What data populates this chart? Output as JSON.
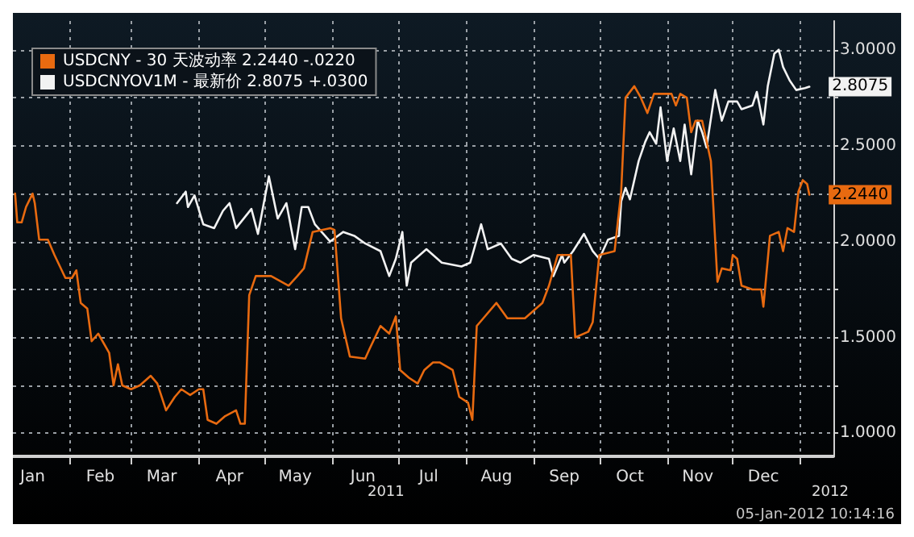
{
  "chart_data": {
    "type": "line",
    "x": [
      "2011-01-07",
      "2011-01-08",
      "2011-01-10",
      "2011-01-12",
      "2011-01-15",
      "2011-01-16",
      "2011-01-18",
      "2011-01-22",
      "2011-01-25",
      "2011-01-30",
      "2011-02-02",
      "2011-02-04",
      "2011-02-06",
      "2011-02-09",
      "2011-02-11",
      "2011-02-14",
      "2011-02-19",
      "2011-02-21",
      "2011-02-23",
      "2011-02-25",
      "2011-03-01",
      "2011-03-05",
      "2011-03-10",
      "2011-03-13",
      "2011-03-17",
      "2011-03-21",
      "2011-03-24",
      "2011-03-28",
      "2011-04-01",
      "2011-04-03",
      "2011-04-05",
      "2011-04-09",
      "2011-04-13",
      "2011-04-18",
      "2011-04-20",
      "2011-04-22",
      "2011-04-24",
      "2011-04-27",
      "2011-05-04",
      "2011-05-12",
      "2011-05-16",
      "2011-05-19",
      "2011-05-23",
      "2011-05-31",
      "2011-06-02",
      "2011-06-05",
      "2011-06-09",
      "2011-06-16",
      "2011-06-18",
      "2011-06-23",
      "2011-06-27",
      "2011-06-30",
      "2011-07-02",
      "2011-07-06",
      "2011-07-10",
      "2011-07-13",
      "2011-07-17",
      "2011-07-20",
      "2011-07-26",
      "2011-07-29",
      "2011-08-02",
      "2011-08-04",
      "2011-08-06",
      "2011-08-09",
      "2011-08-15",
      "2011-08-20",
      "2011-08-28",
      "2011-09-05",
      "2011-09-08",
      "2011-09-12",
      "2011-09-18",
      "2011-09-20",
      "2011-09-26",
      "2011-09-28",
      "2011-10-01",
      "2011-10-08",
      "2011-10-11",
      "2011-10-13",
      "2011-10-17",
      "2011-10-20",
      "2011-10-23",
      "2011-10-26",
      "2011-11-03",
      "2011-11-05",
      "2011-11-07",
      "2011-11-10",
      "2011-11-12",
      "2011-11-14",
      "2011-11-17",
      "2011-11-21",
      "2011-11-24",
      "2011-11-26",
      "2011-11-30",
      "2011-12-01",
      "2011-12-03",
      "2011-12-05",
      "2011-12-10",
      "2011-12-14",
      "2011-12-15",
      "2011-12-18",
      "2011-12-22",
      "2011-12-24",
      "2011-12-26",
      "2011-12-29",
      "2011-12-31",
      "2012-01-02",
      "2012-01-04",
      "2012-01-05"
    ],
    "series": [
      {
        "name": "USDCNY - 30 天波动率 2.2440 -.0220",
        "color": "#e86a10",
        "values": [
          2.25,
          2.1,
          2.1,
          2.18,
          2.25,
          2.2,
          2.01,
          2.01,
          1.93,
          1.81,
          1.81,
          1.85,
          1.68,
          1.65,
          1.48,
          1.52,
          1.42,
          1.25,
          1.36,
          1.25,
          1.23,
          1.25,
          1.3,
          1.26,
          1.12,
          1.19,
          1.23,
          1.2,
          1.23,
          1.23,
          1.07,
          1.05,
          1.09,
          1.12,
          1.05,
          1.05,
          1.72,
          1.82,
          1.82,
          1.77,
          1.82,
          1.86,
          2.05,
          2.07,
          2.06,
          1.6,
          1.4,
          1.39,
          1.44,
          1.56,
          1.52,
          1.61,
          1.33,
          1.29,
          1.26,
          1.33,
          1.37,
          1.37,
          1.33,
          1.19,
          1.16,
          1.07,
          1.56,
          1.6,
          1.68,
          1.6,
          1.6,
          1.68,
          1.77,
          1.93,
          1.93,
          1.5,
          1.53,
          1.58,
          1.93,
          1.95,
          2.26,
          2.75,
          2.81,
          2.75,
          2.67,
          2.77,
          2.77,
          2.71,
          2.77,
          2.75,
          2.57,
          2.63,
          2.63,
          2.42,
          1.79,
          1.86,
          1.85,
          1.93,
          1.91,
          1.77,
          1.75,
          1.75,
          1.66,
          2.03,
          2.05,
          1.95,
          2.07,
          2.05,
          2.26,
          2.32,
          2.3,
          2.244
        ],
        "value_labels": [
          null,
          null,
          null,
          null,
          null,
          null,
          null,
          null,
          null,
          null,
          null,
          null,
          null,
          null,
          null,
          null,
          null,
          null,
          null,
          null,
          null,
          null,
          null,
          null,
          null,
          null,
          null,
          null,
          null,
          null,
          null,
          null,
          null,
          null,
          null,
          null,
          null,
          null,
          null,
          null,
          null,
          null,
          null,
          null,
          null,
          null,
          null,
          null,
          null,
          null,
          null,
          null,
          null,
          null,
          null,
          null,
          null,
          null,
          null,
          null,
          null,
          null,
          null,
          null,
          null,
          null,
          null,
          null,
          null,
          null,
          null,
          null,
          null,
          null,
          null,
          null,
          null,
          null,
          null,
          null,
          null,
          null,
          null,
          null,
          null,
          null,
          null,
          null,
          null,
          null,
          null,
          null,
          null,
          null,
          null,
          null,
          null,
          null,
          null,
          null,
          null,
          null,
          null,
          null,
          null,
          null,
          null,
          "2.2440"
        ]
      },
      {
        "name": "USDCNYOV1M - 最新价 2.8075 +.0300",
        "color": "#f2f2f2",
        "x": [
          "2011-03-22",
          "2011-03-26",
          "2011-03-27",
          "2011-03-30",
          "2011-04-03",
          "2011-04-08",
          "2011-04-12",
          "2011-04-15",
          "2011-04-18",
          "2011-04-25",
          "2011-04-28",
          "2011-05-03",
          "2011-05-07",
          "2011-05-11",
          "2011-05-15",
          "2011-05-18",
          "2011-05-21",
          "2011-05-24",
          "2011-05-31",
          "2011-06-06",
          "2011-06-11",
          "2011-06-16",
          "2011-06-23",
          "2011-06-27",
          "2011-06-30",
          "2011-07-03",
          "2011-07-05",
          "2011-07-07",
          "2011-07-14",
          "2011-07-21",
          "2011-07-30",
          "2011-08-03",
          "2011-08-08",
          "2011-08-11",
          "2011-08-17",
          "2011-08-22",
          "2011-08-26",
          "2011-09-01",
          "2011-09-08",
          "2011-09-10",
          "2011-09-14",
          "2011-09-15",
          "2011-09-19",
          "2011-09-24",
          "2011-09-28",
          "2011-10-01",
          "2011-10-05",
          "2011-10-10",
          "2011-10-11",
          "2011-10-13",
          "2011-10-15",
          "2011-10-19",
          "2011-10-22",
          "2011-10-24",
          "2011-10-27",
          "2011-10-29",
          "2011-11-01",
          "2011-11-04",
          "2011-11-07",
          "2011-11-09",
          "2011-11-12",
          "2011-11-15",
          "2011-11-17",
          "2011-11-19",
          "2011-11-23",
          "2011-11-26",
          "2011-11-29",
          "2011-12-03",
          "2011-12-05",
          "2011-12-10",
          "2011-12-12",
          "2011-12-15",
          "2011-12-17",
          "2011-12-20",
          "2011-12-22",
          "2011-12-24",
          "2011-12-27",
          "2011-12-30",
          "2012-01-03",
          "2012-01-05"
        ],
        "values": [
          2.2,
          2.26,
          2.18,
          2.24,
          2.09,
          2.07,
          2.16,
          2.2,
          2.07,
          2.17,
          2.04,
          2.34,
          2.12,
          2.2,
          1.96,
          2.18,
          2.18,
          2.09,
          2.0,
          2.05,
          2.03,
          1.99,
          1.95,
          1.82,
          1.91,
          2.05,
          1.77,
          1.89,
          1.96,
          1.89,
          1.87,
          1.89,
          2.09,
          1.96,
          1.99,
          1.91,
          1.89,
          1.93,
          1.91,
          1.82,
          1.93,
          1.89,
          1.95,
          2.04,
          1.95,
          1.91,
          2.01,
          2.03,
          2.21,
          2.28,
          2.22,
          2.42,
          2.52,
          2.57,
          2.51,
          2.7,
          2.42,
          2.59,
          2.42,
          2.61,
          2.35,
          2.63,
          2.57,
          2.49,
          2.79,
          2.63,
          2.73,
          2.73,
          2.69,
          2.71,
          2.78,
          2.61,
          2.81,
          2.98,
          3.0,
          2.91,
          2.84,
          2.79,
          2.8,
          2.8075
        ],
        "value_labels": [
          null,
          null,
          null,
          null,
          null,
          null,
          null,
          null,
          null,
          null,
          null,
          null,
          null,
          null,
          null,
          null,
          null,
          null,
          null,
          null,
          null,
          null,
          null,
          null,
          null,
          null,
          null,
          null,
          null,
          null,
          null,
          null,
          null,
          null,
          null,
          null,
          null,
          null,
          null,
          null,
          null,
          null,
          null,
          null,
          null,
          null,
          null,
          null,
          null,
          null,
          null,
          null,
          null,
          null,
          null,
          null,
          null,
          null,
          null,
          null,
          null,
          null,
          null,
          null,
          null,
          null,
          null,
          null,
          null,
          null,
          null,
          null,
          null,
          null,
          null,
          null,
          null,
          null,
          null,
          "2.8075"
        ]
      }
    ],
    "xlim": [
      "2011-01-06",
      "2012-01-16"
    ],
    "xticks": [
      {
        "value": "2011-01-15",
        "label": "Jan"
      },
      {
        "value": "2011-02-01",
        "label": null
      },
      {
        "value": "2011-02-15",
        "label": "Feb"
      },
      {
        "value": "2011-03-01",
        "label": null
      },
      {
        "value": "2011-03-15",
        "label": "Mar"
      },
      {
        "value": "2011-04-01",
        "label": null
      },
      {
        "value": "2011-04-15",
        "label": "Apr"
      },
      {
        "value": "2011-05-01",
        "label": null
      },
      {
        "value": "2011-05-15",
        "label": "May"
      },
      {
        "value": "2011-06-01",
        "label": null
      },
      {
        "value": "2011-06-15",
        "label": "Jun"
      },
      {
        "value": "2011-07-01",
        "label": null
      },
      {
        "value": "2011-07-15",
        "label": "Jul"
      },
      {
        "value": "2011-08-01",
        "label": null
      },
      {
        "value": "2011-08-15",
        "label": "Aug"
      },
      {
        "value": "2011-09-01",
        "label": null
      },
      {
        "value": "2011-09-15",
        "label": "Sep"
      },
      {
        "value": "2011-10-01",
        "label": null
      },
      {
        "value": "2011-10-15",
        "label": "Oct"
      },
      {
        "value": "2011-11-01",
        "label": null
      },
      {
        "value": "2011-11-15",
        "label": "Nov"
      },
      {
        "value": "2011-12-01",
        "label": null
      },
      {
        "value": "2011-12-15",
        "label": "Dec"
      },
      {
        "value": "2012-01-01",
        "label": null
      }
    ],
    "ylim": [
      0.88,
      3.15
    ],
    "yticks": [
      {
        "value": 1,
        "label": "1.0000"
      },
      {
        "value": 1.25,
        "label": null
      },
      {
        "value": 1.5,
        "label": "1.5000"
      },
      {
        "value": 1.75,
        "label": null
      },
      {
        "value": 2,
        "label": "2.0000"
      },
      {
        "value": 2.25,
        "label": null
      },
      {
        "value": 2.5,
        "label": "2.5000"
      },
      {
        "value": 2.75,
        "label": null
      },
      {
        "value": 3,
        "label": "3.0000"
      }
    ],
    "grid": true,
    "legend": "top left",
    "line_style": "solid",
    "marker": "none",
    "annotations": [
      "2011",
      "2012",
      "05-Jan-2012 10:14:16"
    ]
  }
}
